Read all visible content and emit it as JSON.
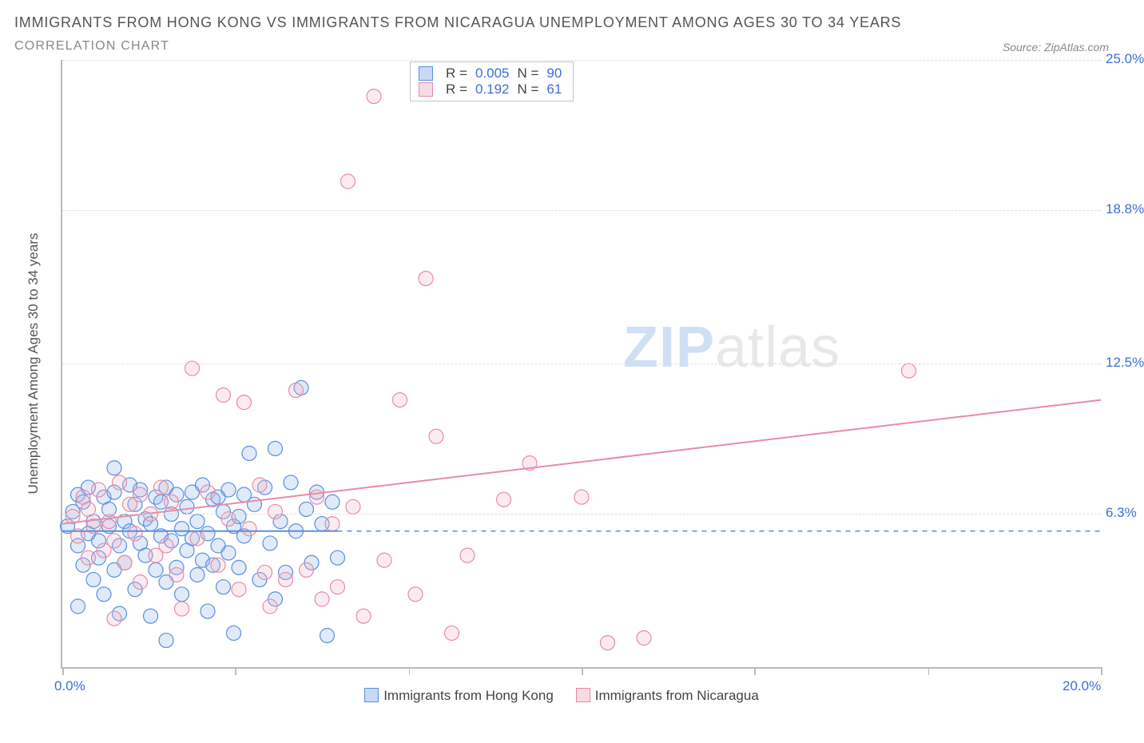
{
  "title": "IMMIGRANTS FROM HONG KONG VS IMMIGRANTS FROM NICARAGUA UNEMPLOYMENT AMONG AGES 30 TO 34 YEARS",
  "subtitle": "CORRELATION CHART",
  "source_prefix": "Source: ",
  "source_name": "ZipAtlas.com",
  "y_axis_title": "Unemployment Among Ages 30 to 34 years",
  "watermark_bold": "ZIP",
  "watermark_light": "atlas",
  "chart": {
    "type": "scatter",
    "xlim": [
      0,
      20
    ],
    "ylim": [
      0,
      25
    ],
    "x_ticks": [
      0,
      3.33,
      6.67,
      10,
      13.33,
      16.67,
      20
    ],
    "x_tick_labels_shown": {
      "0": "0.0%",
      "20": "20.0%"
    },
    "y_ticks": [
      6.3,
      12.5,
      18.8,
      25.0
    ],
    "y_tick_labels": [
      "6.3%",
      "12.5%",
      "18.8%",
      "25.0%"
    ],
    "grid_color": "#dddddd",
    "axis_color": "#bbbbbb",
    "background_color": "#ffffff",
    "marker_radius": 9,
    "marker_stroke_width": 1.2,
    "marker_fill_opacity": 0.28,
    "trend_line_width": 2,
    "trend_dash_width": 1.6,
    "series": [
      {
        "name": "Immigrants from Hong Kong",
        "color_stroke": "#5b8fe0",
        "color_fill": "#8fb3ea",
        "R": "0.005",
        "N": "90",
        "trend": {
          "y_at_x0": 5.6,
          "y_at_x20": 5.6,
          "x_solid_end": 5.3
        },
        "points": [
          [
            0.1,
            5.8
          ],
          [
            0.2,
            6.4
          ],
          [
            0.3,
            5.0
          ],
          [
            0.3,
            7.1
          ],
          [
            0.4,
            4.2
          ],
          [
            0.4,
            6.8
          ],
          [
            0.5,
            5.5
          ],
          [
            0.5,
            7.4
          ],
          [
            0.6,
            3.6
          ],
          [
            0.6,
            6.0
          ],
          [
            0.7,
            4.5
          ],
          [
            0.7,
            5.2
          ],
          [
            0.8,
            7.0
          ],
          [
            0.8,
            3.0
          ],
          [
            0.9,
            5.8
          ],
          [
            0.9,
            6.5
          ],
          [
            1.0,
            4.0
          ],
          [
            1.0,
            7.2
          ],
          [
            1.1,
            5.0
          ],
          [
            1.1,
            2.2
          ],
          [
            1.2,
            6.0
          ],
          [
            1.2,
            4.3
          ],
          [
            1.3,
            7.5
          ],
          [
            1.3,
            5.6
          ],
          [
            1.4,
            3.2
          ],
          [
            1.4,
            6.7
          ],
          [
            1.5,
            5.1
          ],
          [
            1.5,
            7.3
          ],
          [
            1.6,
            4.6
          ],
          [
            1.6,
            6.1
          ],
          [
            1.7,
            2.1
          ],
          [
            1.7,
            5.9
          ],
          [
            1.8,
            7.0
          ],
          [
            1.8,
            4.0
          ],
          [
            1.9,
            5.4
          ],
          [
            1.9,
            6.8
          ],
          [
            2.0,
            3.5
          ],
          [
            2.0,
            7.4
          ],
          [
            2.1,
            5.2
          ],
          [
            2.1,
            6.3
          ],
          [
            2.2,
            4.1
          ],
          [
            2.2,
            7.1
          ],
          [
            2.3,
            5.7
          ],
          [
            2.3,
            3.0
          ],
          [
            2.4,
            6.6
          ],
          [
            2.4,
            4.8
          ],
          [
            2.5,
            7.2
          ],
          [
            2.5,
            5.3
          ],
          [
            2.6,
            3.8
          ],
          [
            2.6,
            6.0
          ],
          [
            2.7,
            4.4
          ],
          [
            2.7,
            7.5
          ],
          [
            2.8,
            5.5
          ],
          [
            2.8,
            2.3
          ],
          [
            2.9,
            6.9
          ],
          [
            2.9,
            4.2
          ],
          [
            3.0,
            7.0
          ],
          [
            3.0,
            5.0
          ],
          [
            3.1,
            3.3
          ],
          [
            3.1,
            6.4
          ],
          [
            3.2,
            4.7
          ],
          [
            3.2,
            7.3
          ],
          [
            3.3,
            5.8
          ],
          [
            3.3,
            1.4
          ],
          [
            3.4,
            6.2
          ],
          [
            3.4,
            4.1
          ],
          [
            3.5,
            7.1
          ],
          [
            3.5,
            5.4
          ],
          [
            3.7,
            6.7
          ],
          [
            3.8,
            3.6
          ],
          [
            3.9,
            7.4
          ],
          [
            4.0,
            5.1
          ],
          [
            4.1,
            9.0
          ],
          [
            4.2,
            6.0
          ],
          [
            4.3,
            3.9
          ],
          [
            4.4,
            7.6
          ],
          [
            4.5,
            5.6
          ],
          [
            4.6,
            11.5
          ],
          [
            4.7,
            6.5
          ],
          [
            4.8,
            4.3
          ],
          [
            4.9,
            7.2
          ],
          [
            5.0,
            5.9
          ],
          [
            5.1,
            1.3
          ],
          [
            5.2,
            6.8
          ],
          [
            5.3,
            4.5
          ],
          [
            4.1,
            2.8
          ],
          [
            3.6,
            8.8
          ],
          [
            2.0,
            1.1
          ],
          [
            0.3,
            2.5
          ],
          [
            1.0,
            8.2
          ]
        ]
      },
      {
        "name": "Immigrants from Nicaragua",
        "color_stroke": "#e88ba6",
        "color_fill": "#f2b6c6",
        "R": "0.192",
        "N": "61",
        "trend": {
          "y_at_x0": 5.9,
          "y_at_x20": 11.0,
          "x_solid_end": 20
        },
        "points": [
          [
            0.2,
            6.2
          ],
          [
            0.3,
            5.4
          ],
          [
            0.4,
            7.0
          ],
          [
            0.5,
            4.5
          ],
          [
            0.5,
            6.5
          ],
          [
            0.6,
            5.8
          ],
          [
            0.7,
            7.3
          ],
          [
            0.8,
            4.8
          ],
          [
            0.9,
            6.0
          ],
          [
            1.0,
            5.2
          ],
          [
            1.1,
            7.6
          ],
          [
            1.2,
            4.3
          ],
          [
            1.3,
            6.7
          ],
          [
            1.4,
            5.5
          ],
          [
            1.5,
            7.1
          ],
          [
            1.5,
            3.5
          ],
          [
            1.7,
            6.3
          ],
          [
            1.8,
            4.6
          ],
          [
            1.9,
            7.4
          ],
          [
            2.0,
            5.0
          ],
          [
            2.1,
            6.8
          ],
          [
            2.2,
            3.8
          ],
          [
            2.5,
            12.3
          ],
          [
            2.6,
            5.3
          ],
          [
            2.8,
            7.2
          ],
          [
            3.0,
            4.2
          ],
          [
            3.1,
            11.2
          ],
          [
            3.2,
            6.1
          ],
          [
            3.4,
            3.2
          ],
          [
            3.5,
            10.9
          ],
          [
            3.6,
            5.7
          ],
          [
            3.8,
            7.5
          ],
          [
            4.0,
            2.5
          ],
          [
            4.1,
            6.4
          ],
          [
            4.3,
            3.6
          ],
          [
            4.5,
            11.4
          ],
          [
            4.7,
            4.0
          ],
          [
            4.9,
            7.0
          ],
          [
            5.0,
            2.8
          ],
          [
            5.2,
            5.9
          ],
          [
            5.3,
            3.3
          ],
          [
            5.5,
            20.0
          ],
          [
            5.6,
            6.6
          ],
          [
            5.8,
            2.1
          ],
          [
            6.0,
            23.5
          ],
          [
            6.2,
            4.4
          ],
          [
            6.5,
            11.0
          ],
          [
            6.8,
            3.0
          ],
          [
            7.0,
            16.0
          ],
          [
            7.2,
            9.5
          ],
          [
            7.5,
            1.4
          ],
          [
            7.8,
            4.6
          ],
          [
            8.5,
            6.9
          ],
          [
            9.0,
            8.4
          ],
          [
            10.0,
            7.0
          ],
          [
            10.5,
            1.0
          ],
          [
            11.2,
            1.2
          ],
          [
            16.3,
            12.2
          ],
          [
            1.0,
            2.0
          ],
          [
            2.3,
            2.4
          ],
          [
            3.9,
            3.9
          ]
        ]
      }
    ]
  },
  "legend_top": {
    "r_label": "R =",
    "n_label": "N ="
  },
  "bottom_legend_labels": [
    "Immigrants from Hong Kong",
    "Immigrants from Nicaragua"
  ]
}
